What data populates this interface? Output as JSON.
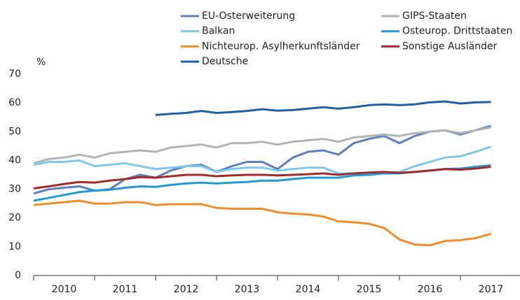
{
  "chart_data": {
    "type": "line",
    "y_unit_label": "%",
    "x": [
      2010,
      2010.25,
      2010.5,
      2010.75,
      2011,
      2011.25,
      2011.5,
      2011.75,
      2012,
      2012.25,
      2012.5,
      2012.75,
      2013,
      2013.25,
      2013.5,
      2013.75,
      2014,
      2014.25,
      2014.5,
      2014.75,
      2015,
      2015.25,
      2015.5,
      2015.75,
      2016,
      2016.25,
      2016.5,
      2016.75,
      2017,
      2017.25,
      2017.5
    ],
    "xlim": [
      2010,
      2018
    ],
    "xticks": [
      {
        "value": 2010.5,
        "label": "2010"
      },
      {
        "value": 2011.5,
        "label": "2011"
      },
      {
        "value": 2012.5,
        "label": "2012"
      },
      {
        "value": 2013.5,
        "label": "2013"
      },
      {
        "value": 2014.5,
        "label": "2014"
      },
      {
        "value": 2015.5,
        "label": "2015"
      },
      {
        "value": 2016.5,
        "label": "2016"
      },
      {
        "value": 2017.5,
        "label": "2017"
      }
    ],
    "ylim": [
      0,
      70
    ],
    "yticks": [
      0,
      10,
      20,
      30,
      40,
      50,
      60,
      70
    ],
    "series": [
      {
        "name": "EU-Osterweiterung",
        "color": "#5b7fbf",
        "values": [
          28.5,
          30,
          30.5,
          31,
          29.5,
          30,
          33.5,
          35,
          34,
          36.5,
          38,
          38.5,
          36,
          38,
          39.5,
          39.5,
          37,
          41,
          43,
          43.5,
          42,
          46,
          47.5,
          48.5,
          46,
          48.5,
          50,
          50.5,
          49,
          50.5,
          52
        ]
      },
      {
        "name": "GIPS-Staaten",
        "color": "#b3b3b3",
        "values": [
          39,
          40.5,
          41,
          42,
          41,
          42.5,
          43,
          43.5,
          43,
          44.5,
          45,
          45.5,
          44.5,
          46,
          46,
          46.5,
          45.5,
          46.5,
          47,
          47.5,
          46.5,
          48,
          48.5,
          49,
          48.5,
          49.5,
          50,
          50.5,
          49.5,
          50.5,
          51.5
        ]
      },
      {
        "name": "Balkan",
        "color": "#7ec8ee",
        "values": [
          38.5,
          39.5,
          39.5,
          40,
          38,
          38.5,
          39,
          38,
          37,
          37.5,
          38,
          38,
          36,
          37,
          37.5,
          37.5,
          36.5,
          37,
          37.5,
          37.5,
          35.5,
          35.5,
          35.5,
          35.5,
          36,
          38,
          39.5,
          41,
          41.5,
          43,
          44.8
        ]
      },
      {
        "name": "Osteurop. Drittstaaten",
        "color": "#1f9ad6",
        "values": [
          26,
          27,
          28,
          29,
          29.5,
          29.8,
          30.5,
          31,
          30.8,
          31.5,
          32,
          32.3,
          32,
          32.3,
          32.5,
          33,
          33,
          33.5,
          34,
          34,
          34,
          34.8,
          35,
          35.5,
          35.5,
          36,
          36.5,
          37,
          37.2,
          37.8,
          38.3
        ]
      },
      {
        "name": "Nichteurop. Asylherkunftsländer",
        "color": "#f28c28",
        "values": [
          24.5,
          25,
          25.5,
          26,
          25,
          25,
          25.5,
          25.5,
          24.5,
          24.8,
          24.8,
          24.8,
          23.5,
          23.2,
          23.2,
          23.2,
          22,
          21.5,
          21.2,
          20.5,
          18.8,
          18.5,
          18,
          16.5,
          12.5,
          10.8,
          10.5,
          12,
          12.3,
          13,
          14.5
        ]
      },
      {
        "name": "Sonstige Ausländer",
        "color": "#a5282b",
        "values": [
          30.3,
          31,
          31.8,
          32.5,
          32.3,
          33,
          33.5,
          34.2,
          34,
          34.5,
          35,
          35,
          34.5,
          34.8,
          35,
          35,
          34.8,
          35,
          35.2,
          35.5,
          35,
          35.5,
          35.8,
          36,
          35.7,
          36,
          36.5,
          37,
          36.8,
          37.2,
          37.8
        ]
      },
      {
        "name": "Deutsche",
        "color": "#1f5fa6",
        "values": [
          null,
          null,
          null,
          null,
          null,
          null,
          null,
          null,
          55.8,
          56.2,
          56.5,
          57.2,
          56.5,
          56.8,
          57.2,
          57.8,
          57.3,
          57.5,
          58,
          58.5,
          58,
          58.5,
          59.2,
          59.5,
          59.2,
          59.5,
          60.2,
          60.5,
          59.8,
          60.2,
          60.3
        ]
      }
    ]
  }
}
